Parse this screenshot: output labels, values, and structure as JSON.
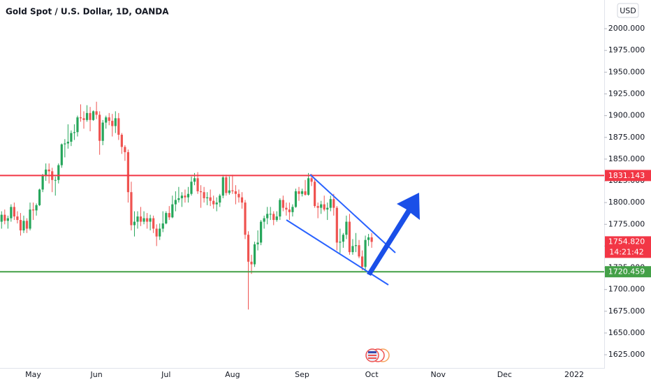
{
  "chart_data": {
    "type": "candlestick",
    "title": "Gold Spot / U.S. Dollar, 1D, OANDA",
    "currency": "USD",
    "up_color": "#26a65b",
    "down_color": "#ef5350",
    "ylim": [
      1609,
      2033
    ],
    "yticks": [
      {
        "value": 1625,
        "label": "1625.000"
      },
      {
        "value": 1650,
        "label": "1650.000"
      },
      {
        "value": 1675,
        "label": "1675.000"
      },
      {
        "value": 1700,
        "label": "1700.000"
      },
      {
        "value": 1725,
        "label": "1725.000"
      },
      {
        "value": 1750,
        "label": "1750.000"
      },
      {
        "value": 1775,
        "label": "1775.000"
      },
      {
        "value": 1800,
        "label": "1800.000"
      },
      {
        "value": 1825,
        "label": "1825.000"
      },
      {
        "value": 1850,
        "label": "1850.000"
      },
      {
        "value": 1875,
        "label": "1875.000"
      },
      {
        "value": 1900,
        "label": "1900.000"
      },
      {
        "value": 1925,
        "label": "1925.000"
      },
      {
        "value": 1950,
        "label": "1950.000"
      },
      {
        "value": 1975,
        "label": "1975.000"
      },
      {
        "value": 2000,
        "label": "2000.000"
      }
    ],
    "categories": [
      null,
      null,
      null,
      null,
      null,
      null,
      null,
      null,
      null,
      null,
      "May",
      null,
      null,
      null,
      null,
      null,
      null,
      null,
      null,
      null,
      null,
      null,
      null,
      null,
      null,
      null,
      null,
      null,
      null,
      null,
      "Jun",
      null,
      null,
      null,
      null,
      null,
      null,
      null,
      null,
      null,
      null,
      null,
      null,
      null,
      null,
      null,
      null,
      null,
      null,
      null,
      null,
      null,
      "Jul",
      null,
      null,
      null,
      null,
      null,
      null,
      null,
      null,
      null,
      null,
      null,
      null,
      null,
      null,
      null,
      null,
      null,
      null,
      null,
      null,
      "Aug",
      null,
      null,
      null,
      null,
      null,
      null,
      null,
      null,
      null,
      null,
      null,
      null,
      null,
      null,
      null,
      null,
      null,
      null,
      null,
      null,
      null,
      "Sep",
      null,
      null,
      null,
      null,
      null,
      null,
      null,
      null,
      null,
      null,
      null,
      null,
      null,
      null,
      null,
      null,
      null,
      null,
      null,
      null,
      null,
      "Oct",
      null,
      null,
      null,
      null,
      null,
      null,
      null,
      null,
      null,
      null,
      null,
      null,
      null,
      null,
      null,
      null,
      null,
      null,
      null,
      null,
      "Nov",
      null,
      null,
      null,
      null,
      null,
      null,
      null,
      null,
      null,
      null,
      null,
      null,
      null,
      null,
      null,
      null,
      null,
      null,
      null,
      null,
      "Dec",
      null,
      null,
      null,
      null,
      null,
      null,
      null,
      null,
      null,
      null,
      null,
      null,
      null,
      null,
      null,
      null,
      null,
      null,
      null,
      null,
      null,
      "2022",
      null,
      null,
      null,
      null,
      null,
      null,
      null,
      null,
      null
    ],
    "ohlc": [
      [
        1778,
        1790,
        1770,
        1786
      ],
      [
        1786,
        1792,
        1775,
        1779
      ],
      [
        1779,
        1785,
        1770,
        1782
      ],
      [
        1782,
        1798,
        1778,
        1795
      ],
      [
        1795,
        1800,
        1780,
        1784
      ],
      [
        1784,
        1790,
        1776,
        1780
      ],
      [
        1780,
        1788,
        1762,
        1768
      ],
      [
        1768,
        1785,
        1765,
        1779
      ],
      [
        1779,
        1782,
        1765,
        1770
      ],
      [
        1770,
        1800,
        1768,
        1792
      ],
      [
        1792,
        1800,
        1780,
        1791
      ],
      [
        1791,
        1799,
        1785,
        1797
      ],
      [
        1797,
        1816,
        1796,
        1815
      ],
      [
        1815,
        1833,
        1812,
        1831
      ],
      [
        1831,
        1845,
        1825,
        1838
      ],
      [
        1838,
        1845,
        1822,
        1836
      ],
      [
        1836,
        1840,
        1812,
        1826
      ],
      [
        1826,
        1830,
        1808,
        1826
      ],
      [
        1826,
        1845,
        1822,
        1843
      ],
      [
        1843,
        1868,
        1840,
        1867
      ],
      [
        1867,
        1873,
        1852,
        1868
      ],
      [
        1868,
        1890,
        1862,
        1870
      ],
      [
        1870,
        1883,
        1865,
        1880
      ],
      [
        1880,
        1890,
        1872,
        1881
      ],
      [
        1881,
        1900,
        1876,
        1898
      ],
      [
        1898,
        1913,
        1893,
        1897
      ],
      [
        1897,
        1905,
        1885,
        1895
      ],
      [
        1895,
        1912,
        1893,
        1903
      ],
      [
        1903,
        1910,
        1882,
        1895
      ],
      [
        1895,
        1906,
        1894,
        1905
      ],
      [
        1905,
        1916,
        1896,
        1901
      ],
      [
        1901,
        1905,
        1855,
        1871
      ],
      [
        1871,
        1895,
        1866,
        1892
      ],
      [
        1892,
        1900,
        1885,
        1898
      ],
      [
        1898,
        1903,
        1889,
        1894
      ],
      [
        1894,
        1902,
        1876,
        1888
      ],
      [
        1888,
        1905,
        1880,
        1897
      ],
      [
        1897,
        1903,
        1872,
        1878
      ],
      [
        1878,
        1880,
        1856,
        1864
      ],
      [
        1864,
        1866,
        1848,
        1858
      ],
      [
        1858,
        1861,
        1800,
        1812
      ],
      [
        1812,
        1824,
        1768,
        1774
      ],
      [
        1774,
        1790,
        1761,
        1778
      ],
      [
        1778,
        1790,
        1770,
        1784
      ],
      [
        1784,
        1795,
        1773,
        1778
      ],
      [
        1778,
        1790,
        1775,
        1782
      ],
      [
        1782,
        1788,
        1770,
        1778
      ],
      [
        1778,
        1786,
        1768,
        1782
      ],
      [
        1782,
        1785,
        1765,
        1770
      ],
      [
        1770,
        1775,
        1750,
        1761
      ],
      [
        1761,
        1776,
        1757,
        1770
      ],
      [
        1770,
        1790,
        1766,
        1776
      ],
      [
        1776,
        1790,
        1775,
        1788
      ],
      [
        1788,
        1796,
        1780,
        1783
      ],
      [
        1783,
        1808,
        1782,
        1798
      ],
      [
        1798,
        1813,
        1790,
        1803
      ],
      [
        1803,
        1818,
        1800,
        1805
      ],
      [
        1805,
        1812,
        1795,
        1808
      ],
      [
        1808,
        1815,
        1800,
        1806
      ],
      [
        1806,
        1818,
        1800,
        1810
      ],
      [
        1810,
        1830,
        1808,
        1824
      ],
      [
        1824,
        1834,
        1820,
        1828
      ],
      [
        1828,
        1835,
        1810,
        1813
      ],
      [
        1813,
        1820,
        1794,
        1812
      ],
      [
        1812,
        1818,
        1800,
        1805
      ],
      [
        1805,
        1812,
        1797,
        1806
      ],
      [
        1806,
        1815,
        1796,
        1802
      ],
      [
        1802,
        1808,
        1793,
        1798
      ],
      [
        1798,
        1806,
        1790,
        1800
      ],
      [
        1800,
        1810,
        1795,
        1808
      ],
      [
        1808,
        1832,
        1805,
        1829
      ],
      [
        1829,
        1832,
        1808,
        1811
      ],
      [
        1811,
        1830,
        1809,
        1814
      ],
      [
        1814,
        1832,
        1810,
        1813
      ],
      [
        1813,
        1820,
        1798,
        1810
      ],
      [
        1810,
        1815,
        1800,
        1806
      ],
      [
        1806,
        1812,
        1793,
        1800
      ],
      [
        1800,
        1803,
        1758,
        1763
      ],
      [
        1763,
        1767,
        1677,
        1732
      ],
      [
        1732,
        1740,
        1718,
        1729
      ],
      [
        1729,
        1755,
        1726,
        1752
      ],
      [
        1752,
        1768,
        1745,
        1754
      ],
      [
        1754,
        1780,
        1751,
        1778
      ],
      [
        1778,
        1785,
        1770,
        1782
      ],
      [
        1782,
        1795,
        1775,
        1787
      ],
      [
        1787,
        1795,
        1780,
        1787
      ],
      [
        1787,
        1790,
        1774,
        1780
      ],
      [
        1780,
        1790,
        1778,
        1784
      ],
      [
        1784,
        1805,
        1780,
        1803
      ],
      [
        1803,
        1808,
        1790,
        1794
      ],
      [
        1794,
        1800,
        1785,
        1792
      ],
      [
        1792,
        1800,
        1780,
        1789
      ],
      [
        1789,
        1798,
        1784,
        1795
      ],
      [
        1795,
        1816,
        1794,
        1813
      ],
      [
        1813,
        1818,
        1802,
        1810
      ],
      [
        1810,
        1816,
        1807,
        1813
      ],
      [
        1813,
        1826,
        1808,
        1809
      ],
      [
        1809,
        1834,
        1808,
        1828
      ],
      [
        1828,
        1833,
        1819,
        1824
      ],
      [
        1824,
        1828,
        1794,
        1796
      ],
      [
        1796,
        1800,
        1782,
        1794
      ],
      [
        1794,
        1802,
        1787,
        1798
      ],
      [
        1798,
        1808,
        1790,
        1792
      ],
      [
        1792,
        1800,
        1780,
        1794
      ],
      [
        1794,
        1808,
        1790,
        1804
      ],
      [
        1804,
        1810,
        1785,
        1794
      ],
      [
        1794,
        1796,
        1745,
        1754
      ],
      [
        1754,
        1770,
        1742,
        1755
      ],
      [
        1755,
        1765,
        1748,
        1763
      ],
      [
        1763,
        1785,
        1758,
        1778
      ],
      [
        1778,
        1787,
        1740,
        1743
      ],
      [
        1743,
        1758,
        1740,
        1750
      ],
      [
        1750,
        1765,
        1743,
        1751
      ],
      [
        1751,
        1757,
        1736,
        1738
      ],
      [
        1738,
        1745,
        1722,
        1726
      ],
      [
        1726,
        1762,
        1723,
        1757
      ],
      [
        1757,
        1764,
        1750,
        1760
      ],
      [
        1760,
        1765,
        1748,
        1754.82
      ],
      null,
      null,
      null,
      null,
      null,
      null,
      null,
      null,
      null,
      null,
      null,
      null,
      null,
      null,
      null,
      null,
      null,
      null,
      null,
      null,
      null,
      null,
      null,
      null,
      null,
      null,
      null,
      null,
      null,
      null,
      null,
      null,
      null,
      null,
      null,
      null,
      null,
      null,
      null,
      null,
      null,
      null,
      null,
      null,
      null,
      null,
      null,
      null,
      null,
      null,
      null,
      null,
      null,
      null,
      null,
      null,
      null,
      null,
      null,
      null,
      null,
      null,
      null,
      null,
      null,
      null,
      null,
      null,
      null,
      null,
      null,
      null,
      null
    ],
    "hlines": [
      {
        "value": 1831.143,
        "label": "1831.143",
        "color": "#f23645"
      },
      {
        "value": 1720.459,
        "label": "1720.459",
        "color": "#43a047"
      }
    ],
    "last_price": {
      "value": 1754.82,
      "label": "1754.820",
      "countdown": "14:21:42",
      "color": "#f23645"
    }
  }
}
